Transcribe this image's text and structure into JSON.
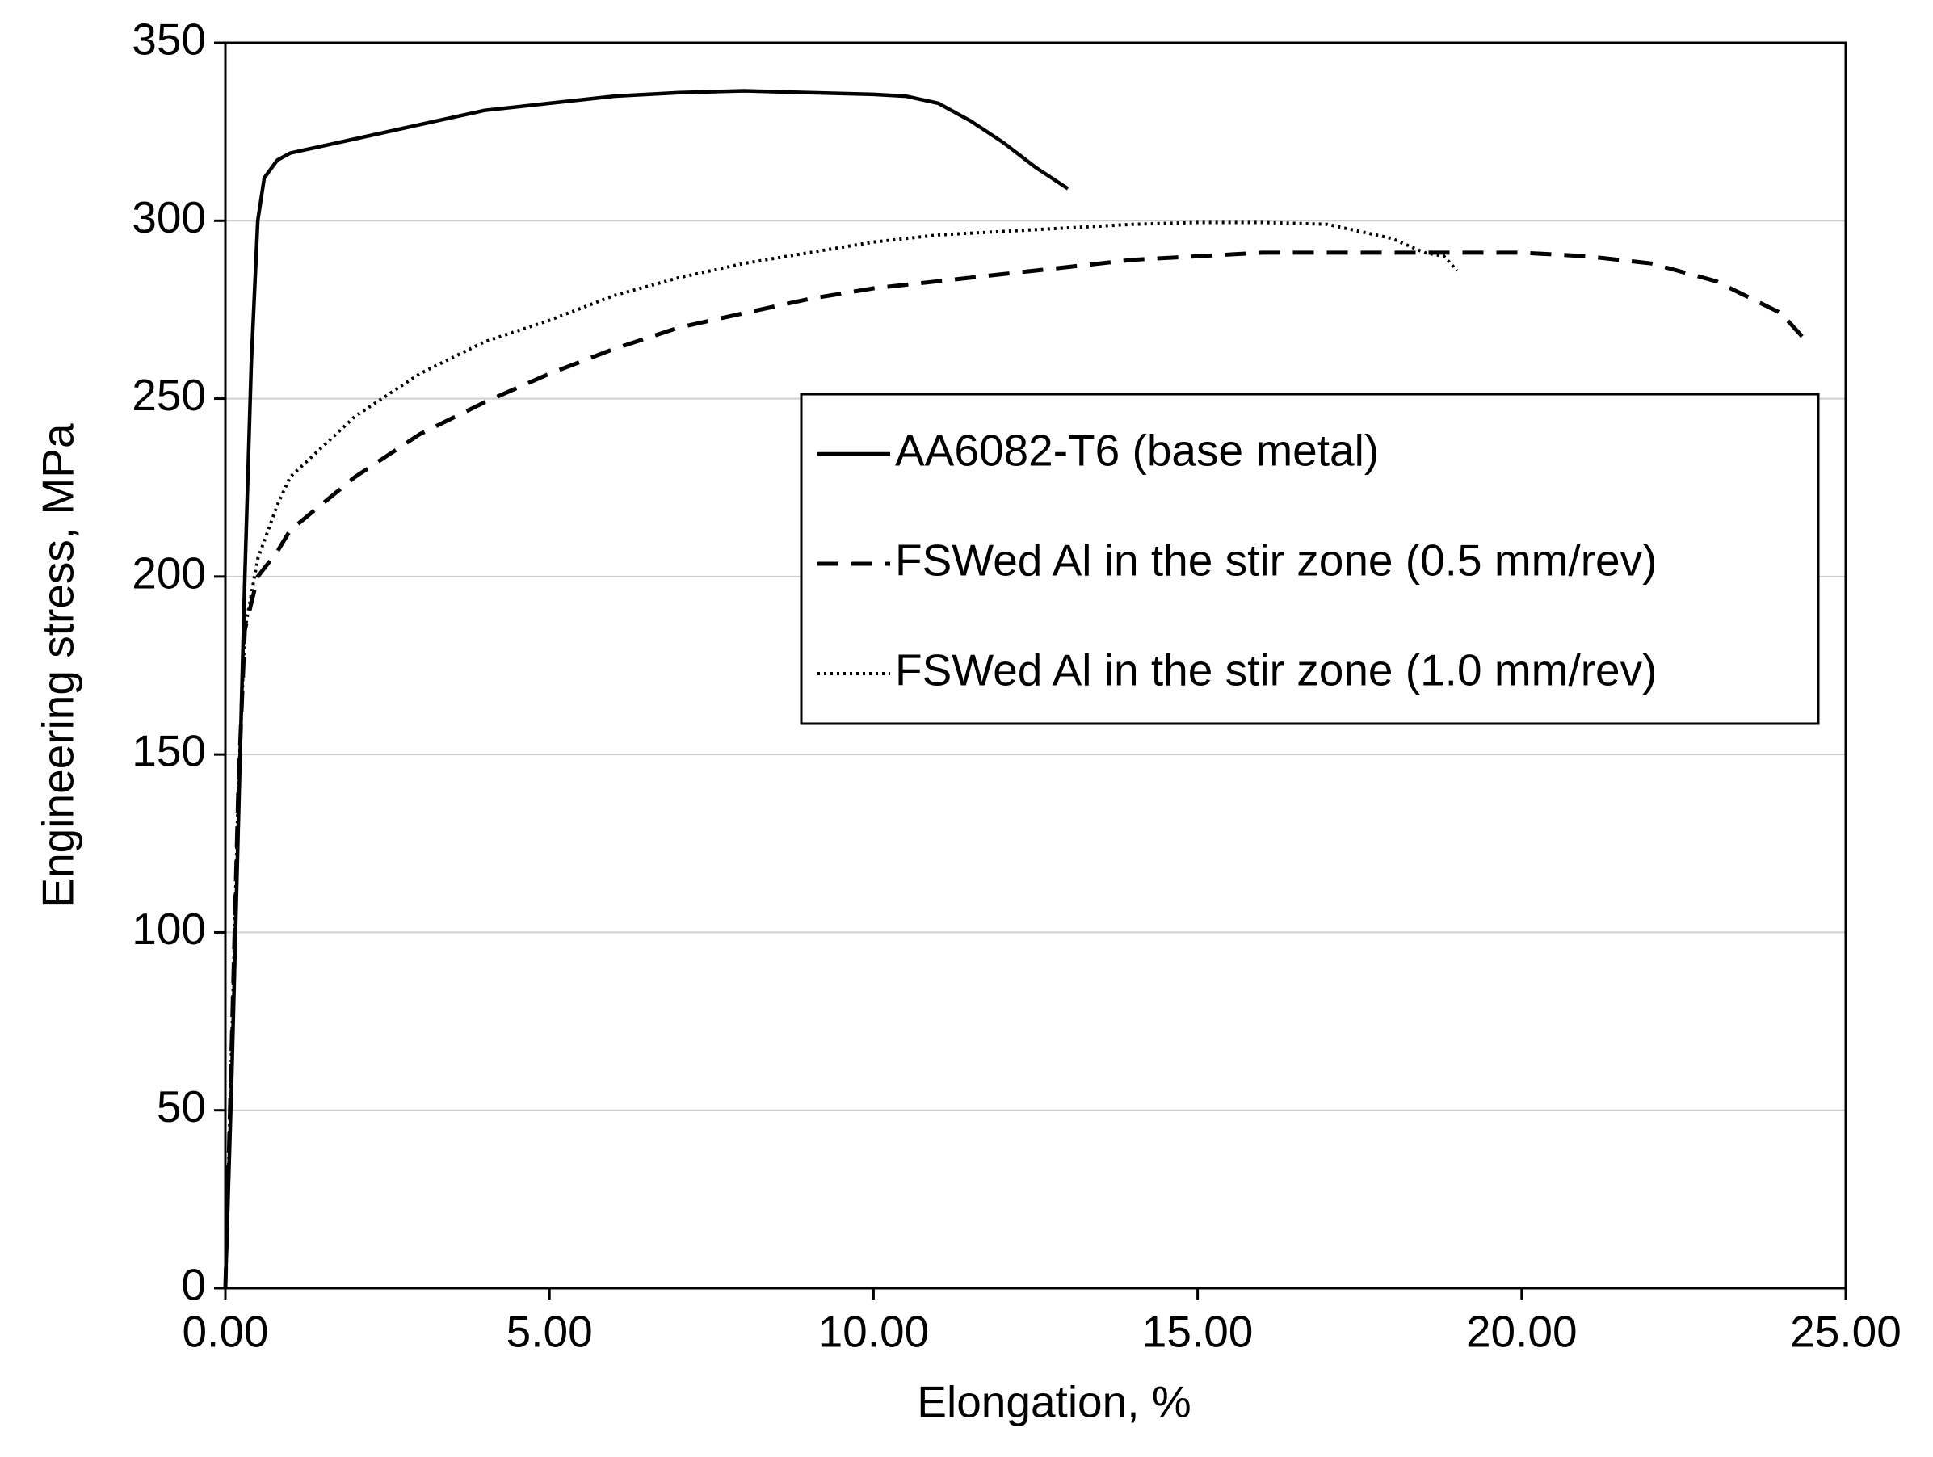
{
  "chart_data": {
    "type": "line",
    "xlabel": "Elongation, %",
    "ylabel": "Engineering stress, MPa",
    "xlim": [
      0,
      25
    ],
    "ylim": [
      0,
      350
    ],
    "xticks": [
      {
        "value": 0,
        "label": "0.00"
      },
      {
        "value": 5,
        "label": "5.00"
      },
      {
        "value": 10,
        "label": "10.00"
      },
      {
        "value": 15,
        "label": "15.00"
      },
      {
        "value": 20,
        "label": "20.00"
      },
      {
        "value": 25,
        "label": "25.00"
      }
    ],
    "yticks": [
      0,
      50,
      100,
      150,
      200,
      250,
      300,
      350
    ],
    "grid": true,
    "legend": "upper right",
    "series": [
      {
        "name": "AA6082-T6 (base metal)",
        "color": "#000000",
        "line_style": "solid",
        "x": [
          0,
          0.1,
          0.2,
          0.3,
          0.4,
          0.5,
          0.6,
          0.8,
          1.0,
          1.5,
          2,
          3,
          4,
          5,
          6,
          7,
          8,
          9,
          10,
          10.5,
          11,
          11.5,
          12,
          12.5,
          13
        ],
        "values": [
          0,
          60,
          130,
          200,
          260,
          300,
          312,
          317,
          319,
          321,
          323,
          327,
          331,
          333,
          335,
          336,
          336.5,
          336,
          335.5,
          335,
          333,
          328,
          322,
          315,
          309
        ]
      },
      {
        "name": "FSWed Al in the stir zone (0.5 mm/rev)",
        "color": "#000000",
        "line_style": "dashed",
        "x": [
          0,
          0.1,
          0.2,
          0.3,
          0.5,
          0.8,
          1,
          2,
          3,
          4,
          5,
          6,
          7,
          8,
          9,
          10,
          11,
          12,
          13,
          14,
          15,
          16,
          17,
          18,
          19,
          20,
          21,
          22,
          23,
          24,
          24.4
        ],
        "values": [
          0,
          70,
          140,
          185,
          200,
          207,
          213,
          228,
          240,
          249,
          257,
          264,
          270,
          274,
          278,
          281,
          283,
          285,
          287,
          289,
          290,
          291,
          291,
          291,
          291,
          291,
          290,
          288,
          283,
          274,
          266
        ]
      },
      {
        "name": "FSWed Al in the stir zone (1.0 mm/rev)",
        "color": "#000000",
        "line_style": "dotted",
        "x": [
          0,
          0.1,
          0.2,
          0.3,
          0.5,
          0.8,
          1,
          2,
          3,
          4,
          5,
          6,
          7,
          8,
          9,
          10,
          11,
          12,
          13,
          14,
          15,
          16,
          17,
          17.5,
          18,
          18.5,
          18.8,
          19
        ],
        "values": [
          0,
          70,
          140,
          185,
          205,
          220,
          228,
          245,
          257,
          266,
          272,
          279,
          284,
          288,
          291,
          294,
          296,
          297,
          298,
          299,
          299.5,
          299.5,
          299,
          297,
          295,
          291,
          290,
          286
        ]
      }
    ]
  }
}
